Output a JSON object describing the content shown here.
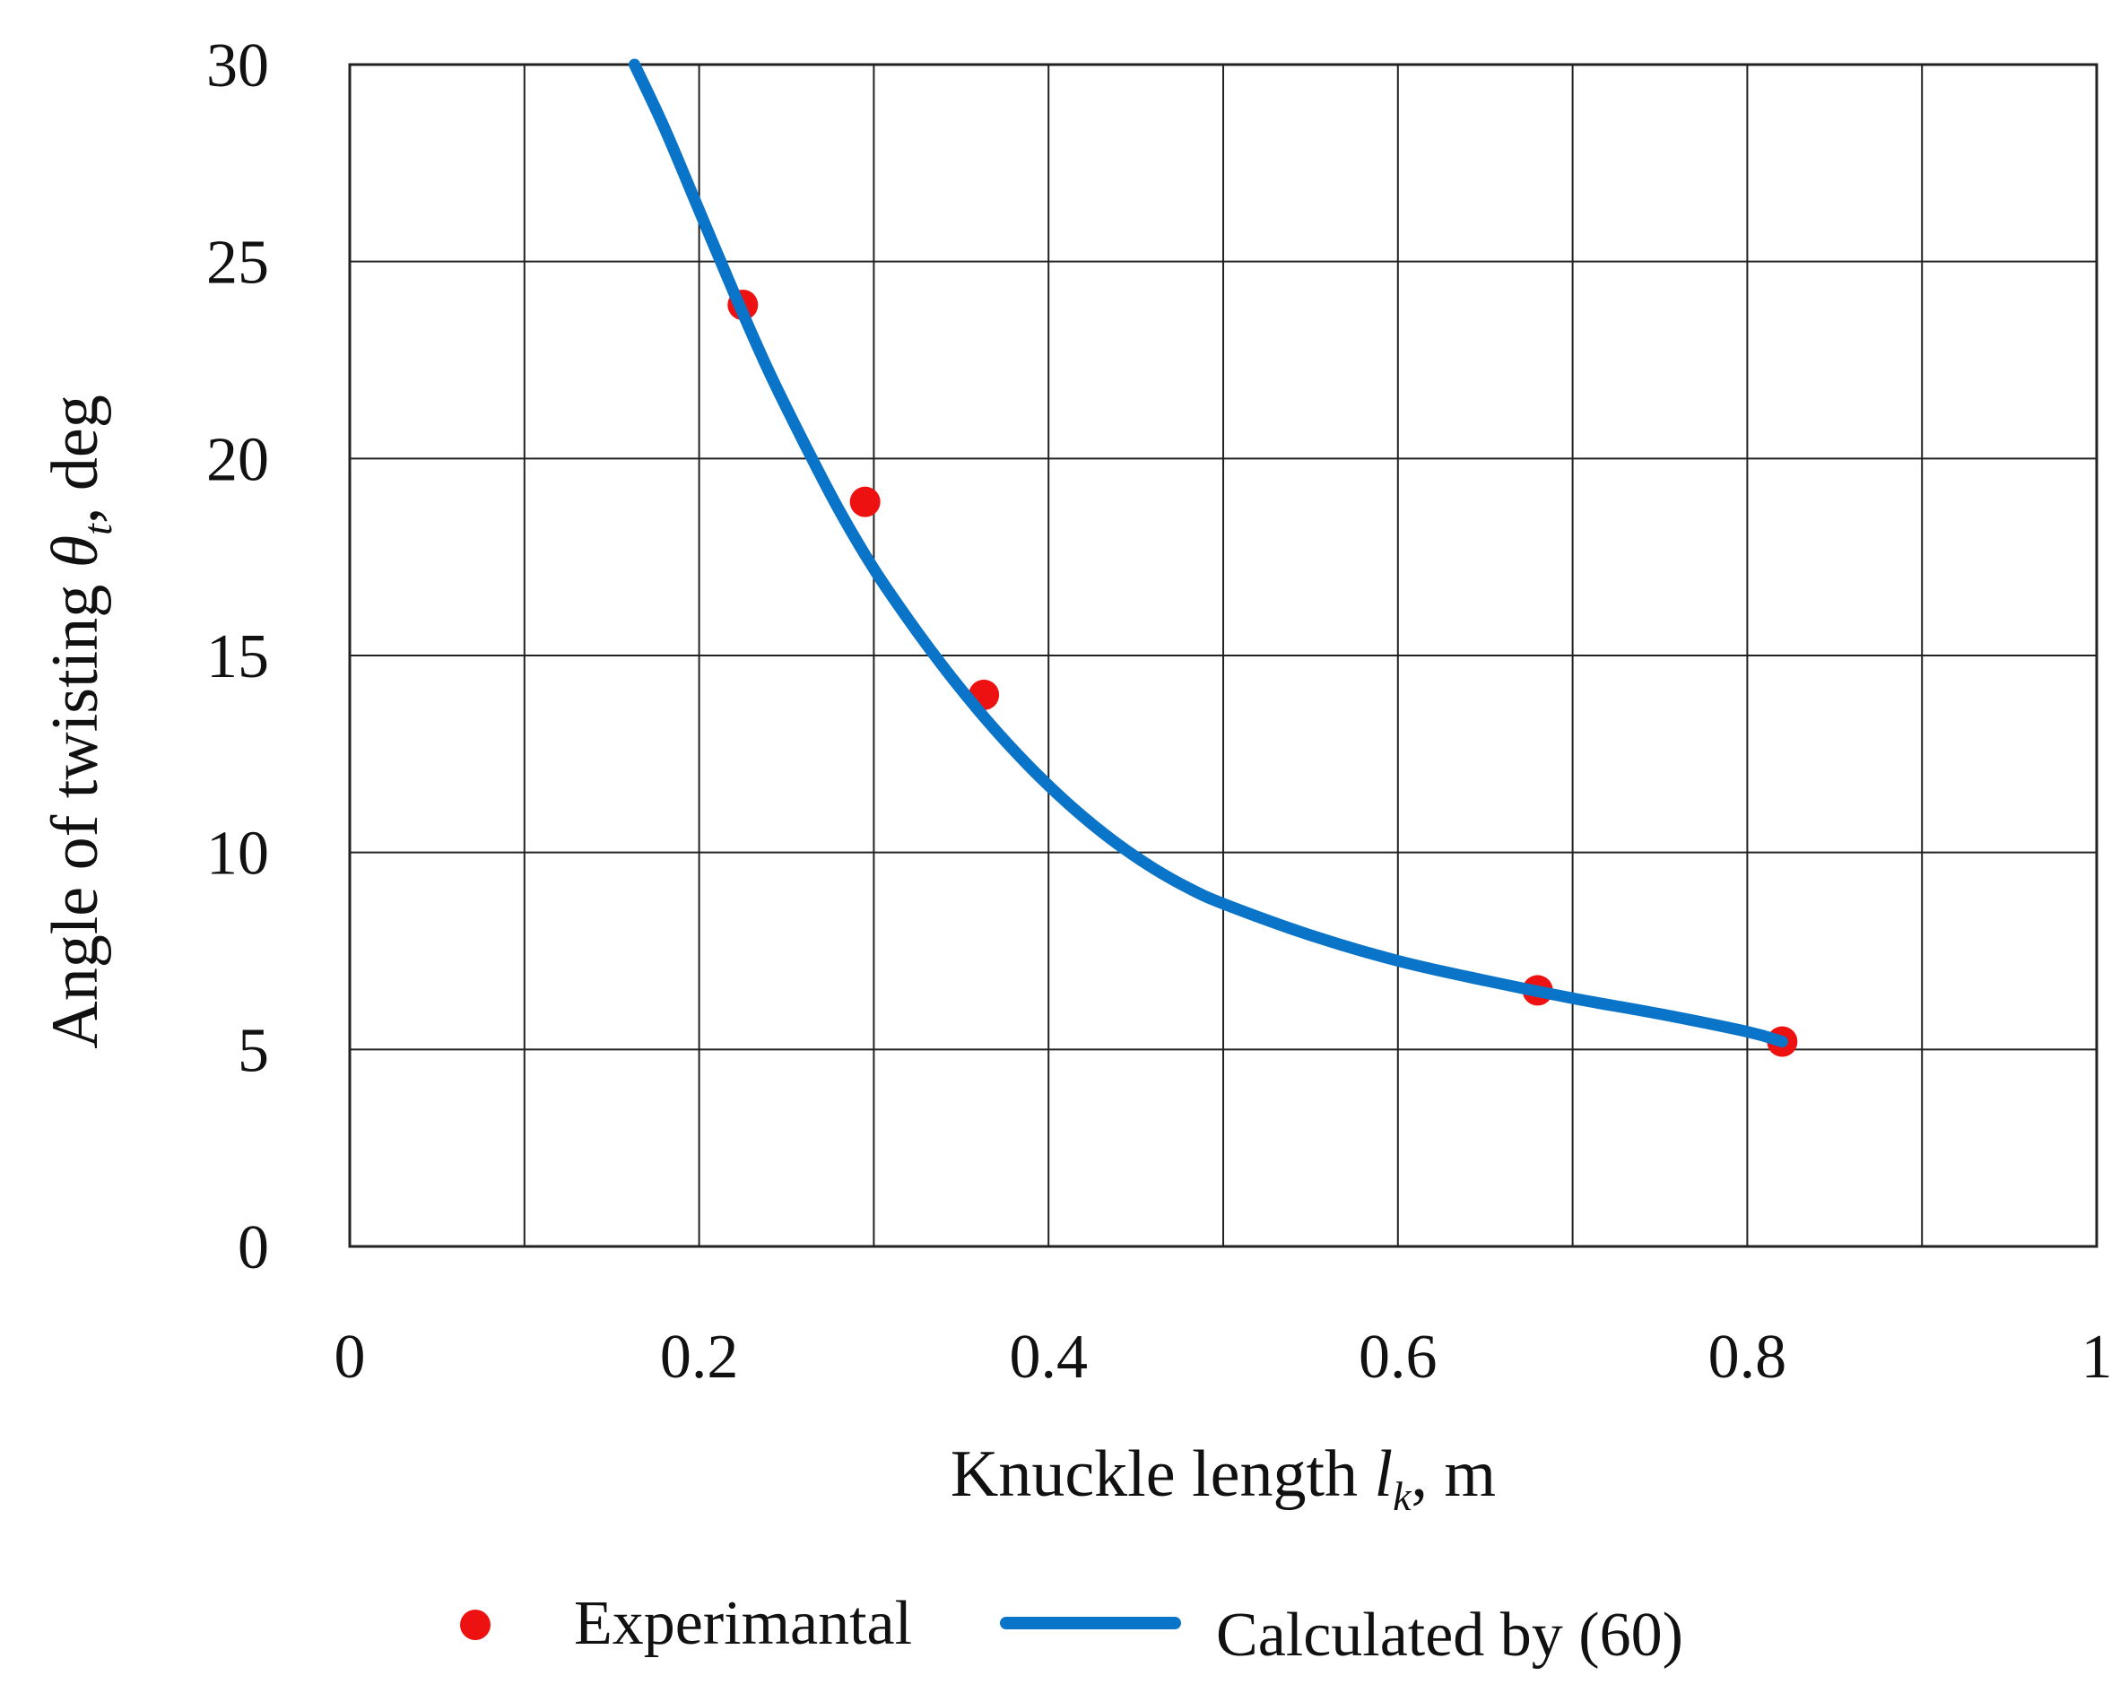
{
  "chart_data": {
    "type": "scatter",
    "title": "",
    "xlabel": {
      "main": "Knuckle length ",
      "symbol": "l",
      "sub": "k",
      "unit": ", m"
    },
    "ylabel": {
      "main": "Angle of twisting  ",
      "symbol": "θ",
      "sub": "t",
      "unit": ", deg"
    },
    "xlim": [
      0,
      1
    ],
    "ylim": [
      0,
      30
    ],
    "x_ticks": [
      0,
      0.1,
      0.2,
      0.3,
      0.4,
      0.5,
      0.6,
      0.7,
      0.8,
      0.9,
      1
    ],
    "x_tick_labels": [
      "0",
      "0.2",
      "0.4",
      "0.6",
      "0.8",
      "1"
    ],
    "x_tick_label_values": [
      0,
      0.2,
      0.4,
      0.6,
      0.8,
      1
    ],
    "y_ticks": [
      0,
      5,
      10,
      15,
      20,
      25,
      30
    ],
    "y_tick_labels": [
      "0",
      "5",
      "10",
      "15",
      "20",
      "25",
      "30"
    ],
    "grid": true,
    "legend_position": "bottom",
    "series": [
      {
        "name": "Experimantal",
        "kind": "scatter",
        "color": "#ee1111",
        "x": [
          0.225,
          0.295,
          0.363,
          0.68,
          0.82
        ],
        "y": [
          23.9,
          18.9,
          14.0,
          6.5,
          5.2
        ]
      },
      {
        "name": "Calculated by (60)",
        "kind": "line",
        "color": "#0a74c8",
        "x": [
          0.163,
          0.18,
          0.2,
          0.22,
          0.24,
          0.26,
          0.28,
          0.3,
          0.32,
          0.34,
          0.36,
          0.38,
          0.4,
          0.42,
          0.44,
          0.46,
          0.48,
          0.5,
          0.55,
          0.6,
          0.65,
          0.7,
          0.75,
          0.8,
          0.82
        ],
        "y": [
          30.0,
          28.4,
          26.3,
          24.2,
          22.2,
          20.4,
          18.7,
          17.2,
          15.9,
          14.7,
          13.6,
          12.6,
          11.7,
          10.9,
          10.2,
          9.6,
          9.1,
          8.7,
          7.9,
          7.25,
          6.75,
          6.3,
          5.9,
          5.45,
          5.2
        ]
      }
    ]
  }
}
